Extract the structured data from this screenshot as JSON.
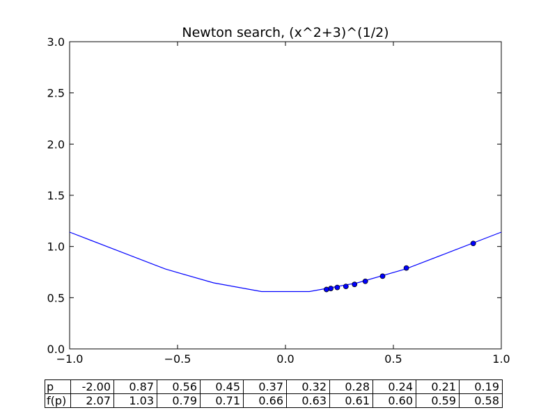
{
  "chart_data": {
    "type": "line",
    "title": "Newton search, (x^2+3)^(1/2)",
    "xlabel": "",
    "ylabel": "",
    "xlim": [
      -1.0,
      1.0
    ],
    "ylim": [
      0.0,
      3.0
    ],
    "xticks": [
      -1.0,
      -0.5,
      0.0,
      0.5,
      1.0
    ],
    "xtick_labels": [
      "−1.0",
      "−0.5",
      "0.0",
      "0.5",
      "1.0"
    ],
    "yticks": [
      0.0,
      0.5,
      1.0,
      1.5,
      2.0,
      2.5,
      3.0
    ],
    "ytick_labels": [
      "0.0",
      "0.5",
      "1.0",
      "1.5",
      "2.0",
      "2.5",
      "3.0"
    ],
    "grid": false,
    "line": {
      "color": "#0000ff",
      "x": [
        -1.0,
        -0.778,
        -0.556,
        -0.333,
        -0.111,
        0.111,
        0.333,
        0.556,
        0.778,
        1.0
      ],
      "y": [
        1.14,
        0.96,
        0.78,
        0.645,
        0.56,
        0.56,
        0.645,
        0.78,
        0.96,
        1.14
      ]
    },
    "points": {
      "color": "#0000ff",
      "x": [
        0.87,
        0.56,
        0.45,
        0.37,
        0.32,
        0.28,
        0.24,
        0.21,
        0.19
      ],
      "y": [
        1.03,
        0.79,
        0.71,
        0.66,
        0.63,
        0.61,
        0.6,
        0.59,
        0.58
      ]
    },
    "table": {
      "rows": [
        {
          "label": "p",
          "values": [
            "-2.00",
            "0.87",
            "0.56",
            "0.45",
            "0.37",
            "0.32",
            "0.28",
            "0.24",
            "0.21",
            "0.19"
          ]
        },
        {
          "label": "f(p)",
          "values": [
            "2.07",
            "1.03",
            "0.79",
            "0.71",
            "0.66",
            "0.63",
            "0.61",
            "0.60",
            "0.59",
            "0.58"
          ]
        }
      ]
    }
  }
}
